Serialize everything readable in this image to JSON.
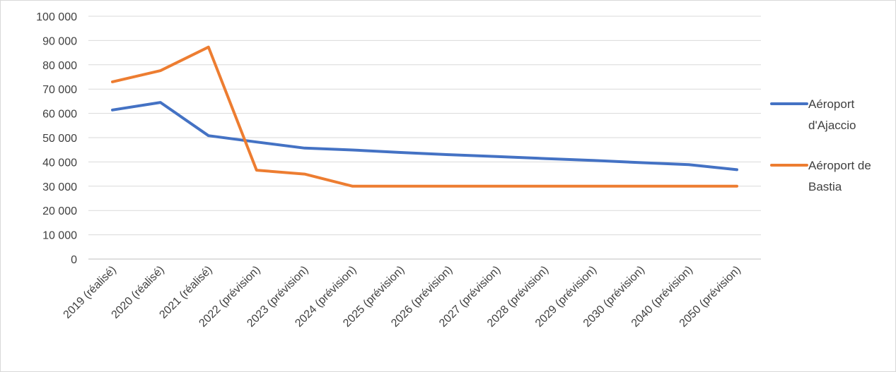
{
  "chart_data": {
    "type": "line",
    "title": "",
    "xlabel": "",
    "ylabel": "",
    "categories": [
      "2019 (réalisé)",
      "2020 (réalisé)",
      "2021 (réalisé)",
      "2022 (prévision)",
      "2023 (prévision)",
      "2024 (prévision)",
      "2025 (prévision)",
      "2026 (prévision)",
      "2027 (prévision)",
      "2028 (prévision)",
      "2029 (prévision)",
      "2030 (prévision)",
      "2040 (prévision)",
      "2050 (prévision)"
    ],
    "ylim": [
      0,
      100000
    ],
    "yticks": [
      0,
      10000,
      20000,
      30000,
      40000,
      50000,
      60000,
      70000,
      80000,
      90000,
      100000
    ],
    "ytick_labels": [
      "0",
      "10 000",
      "20 000",
      "30 000",
      "40 000",
      "50 000",
      "60 000",
      "70 000",
      "80 000",
      "90 000",
      "100 000"
    ],
    "grid": true,
    "legend_position": "right",
    "series": [
      {
        "name": "Aéroport d'Ajaccio",
        "legend_lines": [
          "Aéroport",
          "d'Ajaccio"
        ],
        "color": "#4472c4",
        "values": [
          61400,
          64500,
          50800,
          48200,
          45700,
          44900,
          43900,
          43000,
          42200,
          41400,
          40600,
          39700,
          38900,
          36800
        ]
      },
      {
        "name": "Aéroport de Bastia",
        "legend_lines": [
          "Aéroport de",
          "Bastia"
        ],
        "color": "#ed7d31",
        "values": [
          73000,
          77600,
          87300,
          36600,
          35000,
          30000,
          30000,
          30000,
          30000,
          30000,
          30000,
          30000,
          30000,
          30000
        ]
      }
    ]
  }
}
